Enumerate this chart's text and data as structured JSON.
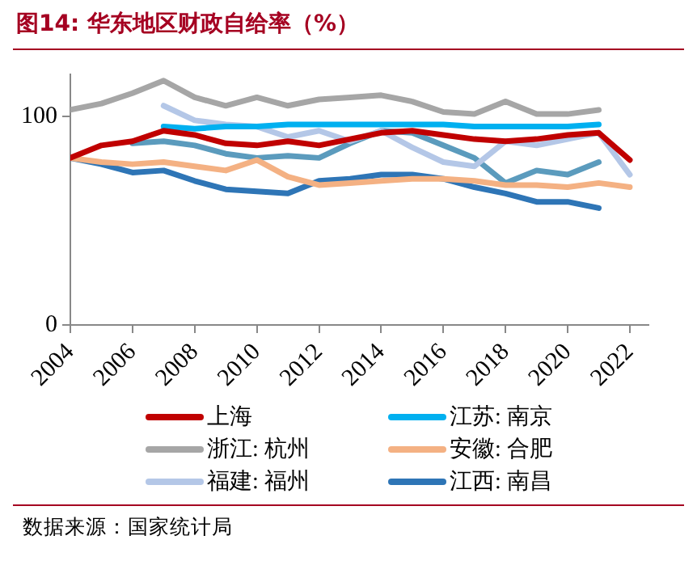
{
  "chart_data": {
    "type": "line",
    "title": "图14:  华东地区财政自给率（%）",
    "annotations": [
      "数据来源：国家统计局"
    ],
    "x": [
      2004,
      2005,
      2006,
      2007,
      2008,
      2009,
      2010,
      2011,
      2012,
      2013,
      2014,
      2015,
      2016,
      2017,
      2018,
      2019,
      2020,
      2021,
      2022
    ],
    "xlim": [
      2004,
      2022.6
    ],
    "xticks": [
      2004,
      2006,
      2008,
      2010,
      2012,
      2014,
      2016,
      2018,
      2020,
      2022
    ],
    "ylim": [
      0,
      120
    ],
    "yticks": [
      0,
      100
    ],
    "grid": false,
    "legend": "bottom",
    "marker": "none",
    "line_style": "solid",
    "series": [
      {
        "name": "上海",
        "color": "#c00000",
        "values": [
          80,
          86,
          88,
          93,
          91,
          87,
          86,
          88,
          86,
          89,
          92,
          93,
          91,
          89,
          88,
          89,
          91,
          92,
          79
        ]
      },
      {
        "name": "江苏: 南京",
        "color": "#00b0f0",
        "values": [
          null,
          null,
          null,
          95,
          94,
          95,
          95,
          96,
          96,
          96,
          96,
          96,
          96,
          95,
          95,
          95,
          95,
          96,
          null
        ]
      },
      {
        "name": "浙江: 杭州",
        "color": "#a6a6a6",
        "values": [
          103,
          106,
          111,
          117,
          109,
          105,
          109,
          105,
          108,
          109,
          110,
          107,
          102,
          101,
          107,
          101,
          101,
          103,
          null
        ]
      },
      {
        "name": "安徽: 合肥",
        "color": "#f4b183",
        "values": [
          80,
          78,
          77,
          78,
          76,
          74,
          79,
          71,
          67,
          68,
          69,
          70,
          70,
          69,
          67,
          67,
          66,
          68,
          66
        ]
      },
      {
        "name": "福建: 福州",
        "color": "#b4c7e7",
        "values": [
          null,
          null,
          null,
          105,
          98,
          96,
          95,
          90,
          93,
          88,
          93,
          85,
          78,
          76,
          88,
          86,
          89,
          92,
          72
        ]
      },
      {
        "name": "江西: 南昌",
        "color": "#2e75b6",
        "values": [
          80,
          77,
          73,
          74,
          69,
          65,
          64,
          63,
          69,
          70,
          72,
          72,
          70,
          66,
          63,
          59,
          59,
          56,
          null
        ]
      },
      {
        "color": "#5b9bbd",
        "values": [
          null,
          null,
          87,
          88,
          86,
          82,
          80,
          81,
          80,
          87,
          93,
          92,
          86,
          80,
          68,
          74,
          72,
          78,
          null
        ]
      }
    ]
  }
}
